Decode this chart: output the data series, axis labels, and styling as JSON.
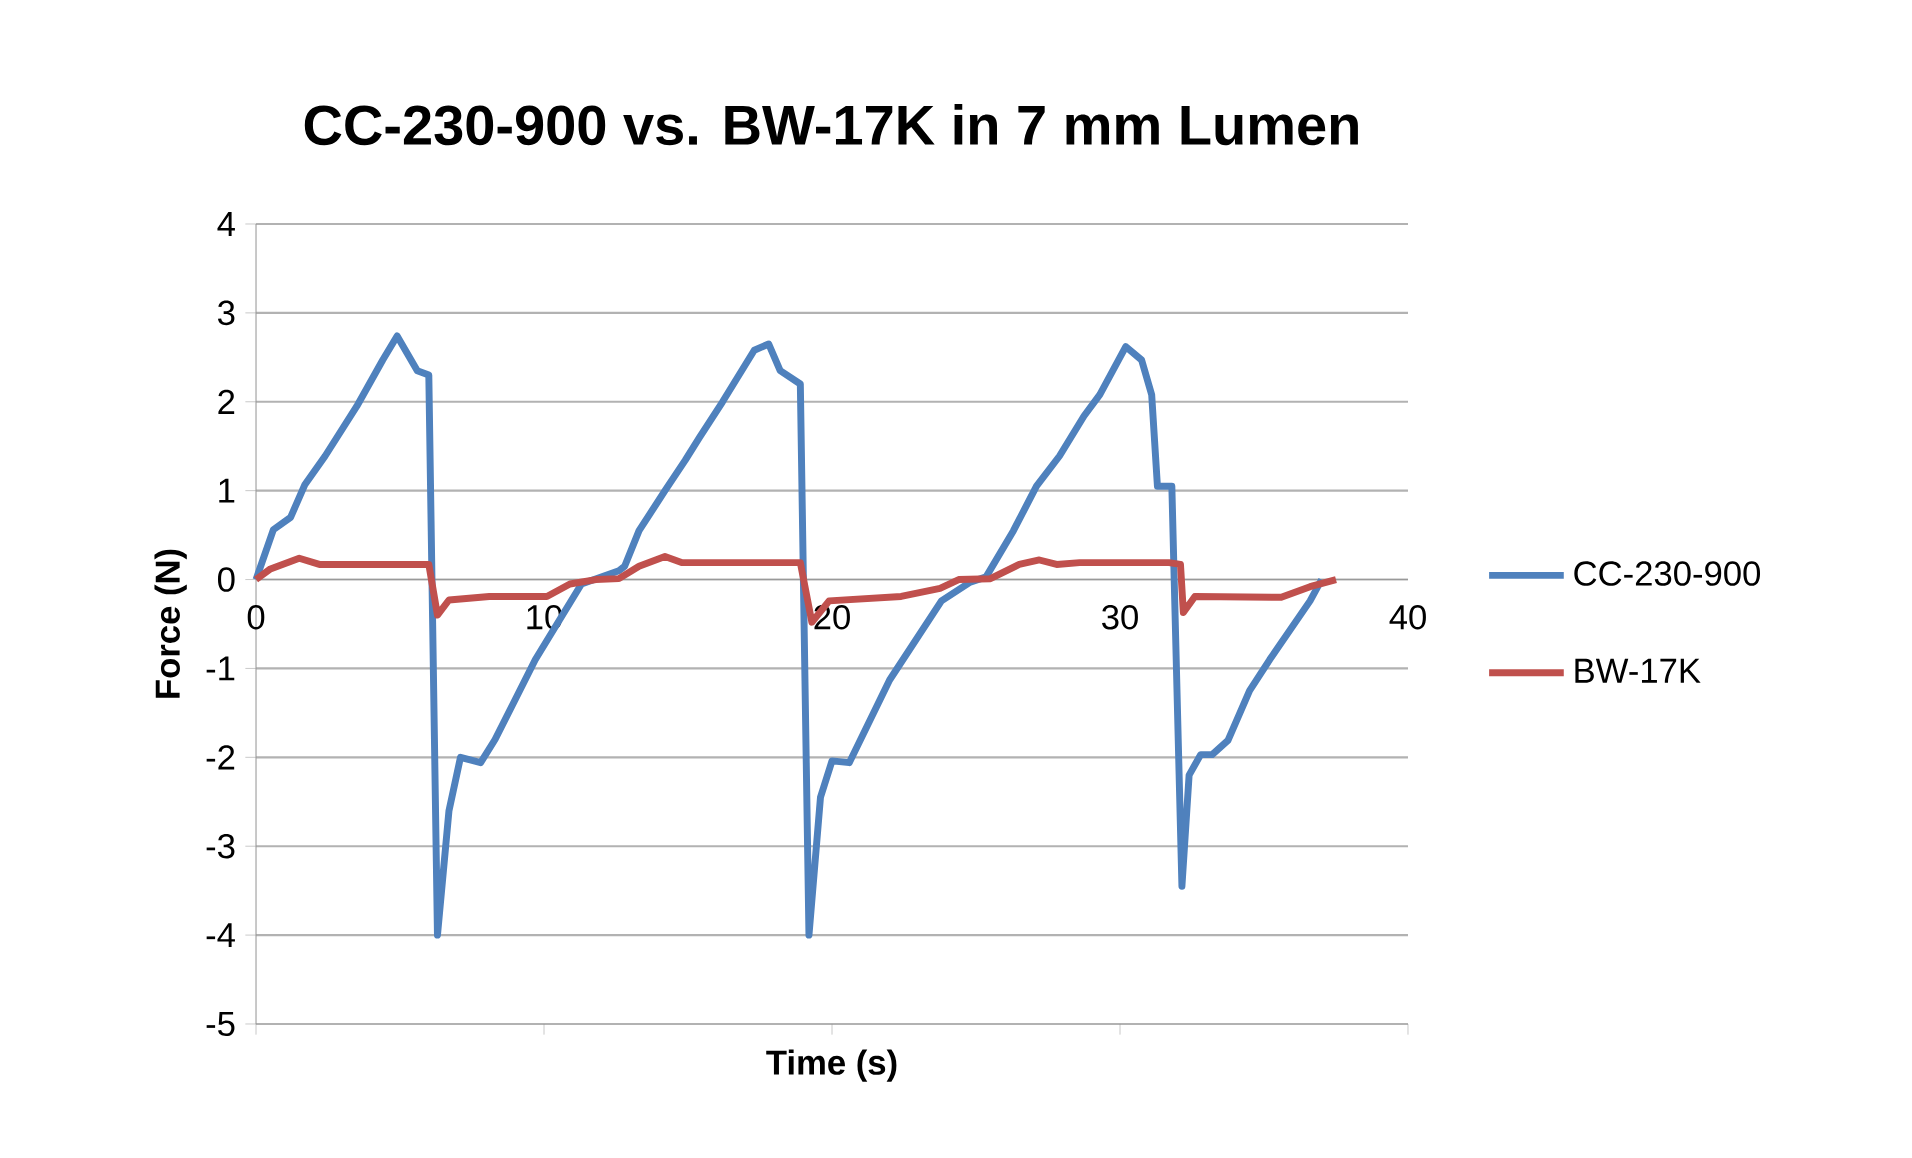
{
  "chart_data": {
    "type": "line",
    "title": "CC-230-900 vs. BW-17K in 7 mm Lumen",
    "xlabel": "Time (s)",
    "ylabel": "Force (N)",
    "xlim": [
      0,
      40
    ],
    "xticks": [
      0,
      10,
      20,
      30,
      40
    ],
    "ylim": [
      -5,
      4
    ],
    "yticks": [
      -5,
      -4,
      -3,
      -2,
      -1,
      0,
      1,
      2,
      3,
      4
    ],
    "grid": "y",
    "legend": "right",
    "marker": "none",
    "line_style": "solid",
    "series": [
      {
        "name": "CC-230-900",
        "color": "#4f81bd",
        "x": [
          0,
          0.6,
          1.2,
          1.7,
          2.4,
          3.5,
          4.4,
          4.9,
          5.6,
          6.0,
          6.3,
          6.7,
          7.1,
          7.8,
          8.3,
          9.7,
          11.3,
          12.6,
          12.8,
          13.3,
          14.2,
          14.9,
          15.4,
          16.2,
          17.3,
          17.8,
          18.2,
          18.9,
          19.2,
          19.6,
          20.0,
          20.6,
          22.0,
          23.8,
          24.8,
          25.35,
          26.3,
          27.1,
          27.9,
          28.75,
          29.3,
          30.2,
          30.75,
          31.1,
          31.3,
          31.8,
          32.15,
          32.4,
          32.8,
          33.2,
          33.75,
          34.5,
          35.2,
          36.6,
          37.0
        ],
        "values": [
          0,
          0.56,
          0.7,
          1.07,
          1.39,
          1.95,
          2.47,
          2.74,
          2.35,
          2.3,
          -4.0,
          -2.6,
          -2.0,
          -2.06,
          -1.8,
          -0.9,
          -0.05,
          0.1,
          0.15,
          0.55,
          1.0,
          1.34,
          1.6,
          2.0,
          2.58,
          2.65,
          2.35,
          2.2,
          -4.0,
          -2.45,
          -2.04,
          -2.06,
          -1.13,
          -0.24,
          -0.03,
          0.03,
          0.55,
          1.05,
          1.39,
          1.84,
          2.08,
          2.62,
          2.47,
          2.08,
          1.05,
          1.05,
          -3.45,
          -2.2,
          -1.97,
          -1.97,
          -1.81,
          -1.25,
          -0.9,
          -0.24,
          0
        ]
      },
      {
        "name": "BW-17K",
        "color": "#c0504d",
        "x": [
          0,
          0.5,
          1.5,
          2.2,
          6.0,
          6.3,
          6.7,
          8.1,
          10.1,
          10.9,
          11.8,
          12.6,
          13.3,
          14.2,
          14.8,
          18.9,
          19.3,
          19.9,
          22.4,
          23.75,
          24.4,
          25.5,
          26.5,
          27.2,
          27.8,
          28.6,
          31.7,
          32.1,
          32.2,
          32.6,
          35.6,
          36.6,
          37.5
        ],
        "values": [
          0,
          0.12,
          0.24,
          0.17,
          0.17,
          -0.4,
          -0.23,
          -0.19,
          -0.19,
          -0.05,
          0,
          0.01,
          0.15,
          0.26,
          0.19,
          0.19,
          -0.48,
          -0.24,
          -0.19,
          -0.1,
          0,
          0.01,
          0.17,
          0.22,
          0.17,
          0.19,
          0.19,
          0.17,
          -0.37,
          -0.19,
          -0.2,
          -0.08,
          0
        ]
      }
    ]
  }
}
